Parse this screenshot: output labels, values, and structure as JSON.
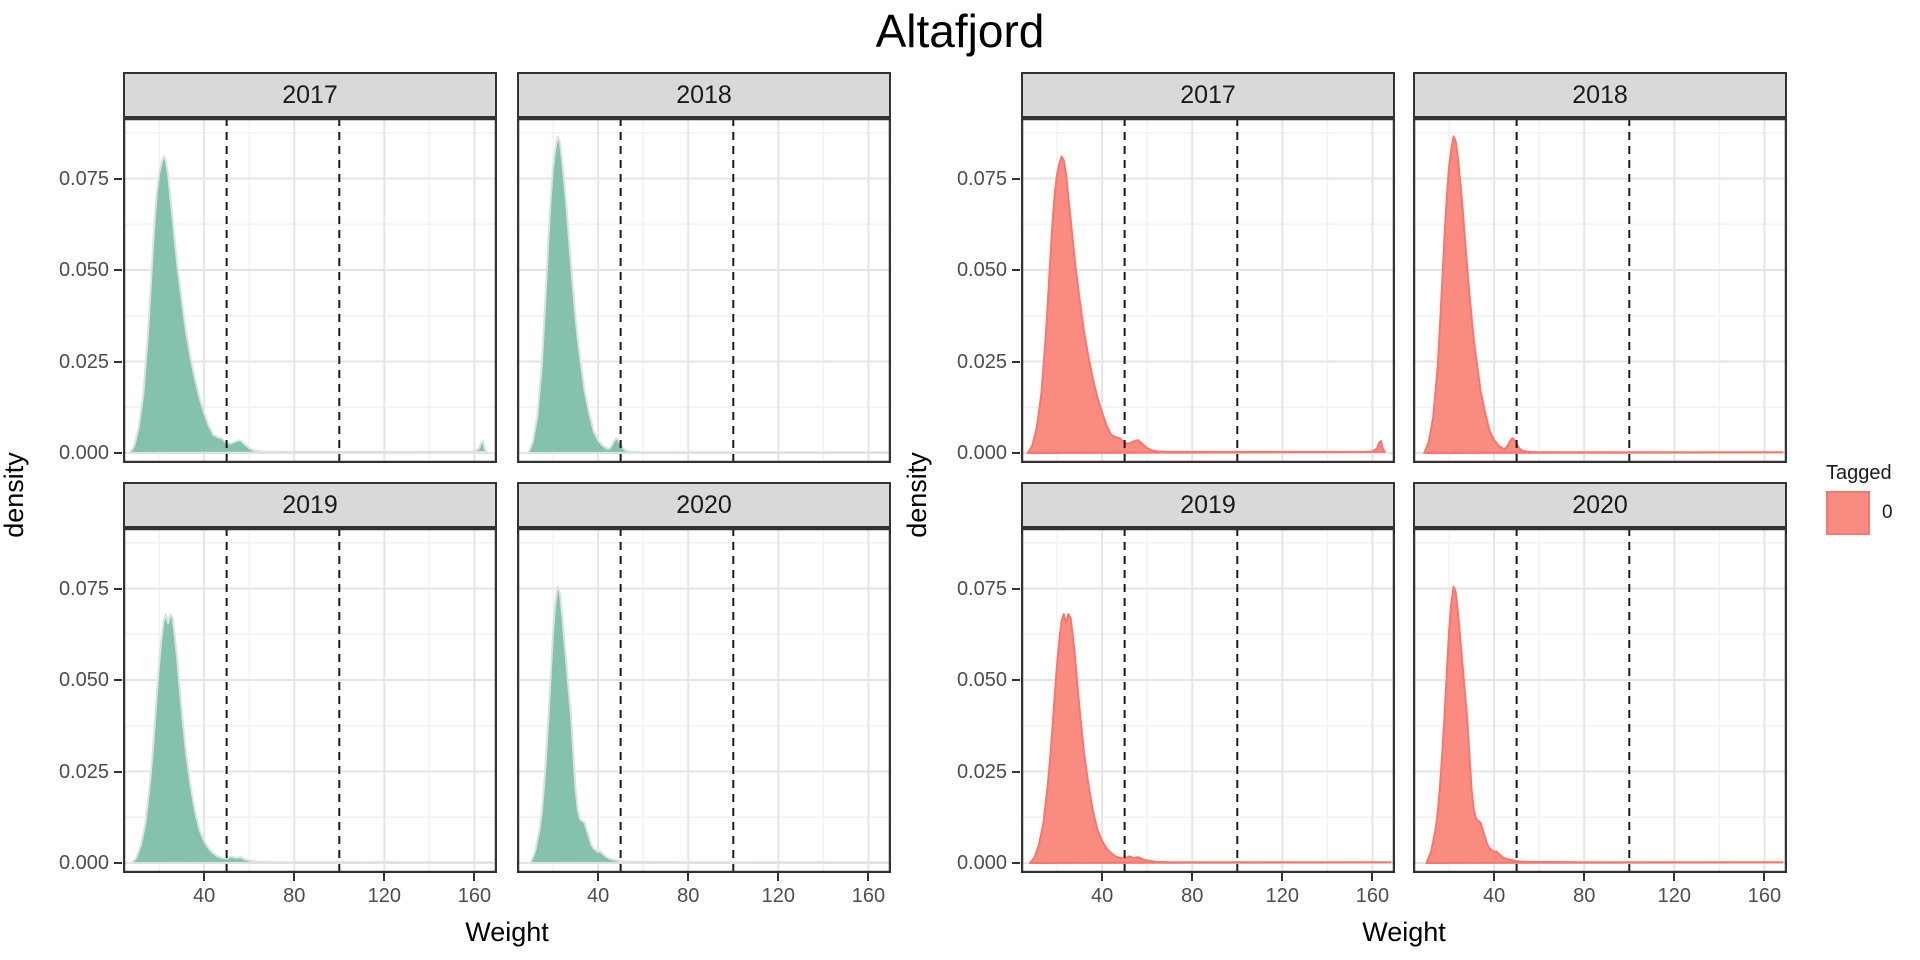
{
  "chart_data": {
    "type": "area",
    "title": "Altafjord",
    "xlabel": "Weight",
    "ylabel": "density",
    "facets": [
      "2017",
      "2018",
      "2019",
      "2020"
    ],
    "x_ticks": [
      40,
      80,
      120,
      160
    ],
    "x_tick_labels": [
      "40",
      "80",
      "120",
      "160"
    ],
    "y_ticks": [
      0,
      0.025,
      0.05,
      0.075
    ],
    "y_tick_labels": [
      "0.000",
      "0.025",
      "0.050",
      "0.075"
    ],
    "xlim": [
      4,
      170
    ],
    "ylim": [
      0,
      0.092
    ],
    "grid": "on",
    "vlines": {
      "values": [
        50,
        100
      ],
      "style": "dashed",
      "color": "#1a1a1a"
    },
    "legend_position": "right",
    "series": [
      {
        "id": "all-fish",
        "fill": "#85C1AF",
        "outline": "#DCE2DF",
        "legend": null
      },
      {
        "id": "tagged-0",
        "fill": "#F98B81",
        "outline": "#F8766D",
        "legend": {
          "title": "Tagged",
          "label": "0"
        }
      }
    ],
    "densities": {
      "2017": {
        "x": [
          7,
          9,
          11,
          13,
          15,
          16,
          17,
          18,
          19,
          20,
          21,
          22,
          23,
          24,
          25,
          26,
          27,
          28,
          29,
          30,
          32,
          34,
          36,
          38,
          40,
          42,
          44,
          46,
          48,
          50,
          52,
          54,
          56,
          58,
          60,
          62,
          65,
          70,
          90,
          120,
          150,
          158,
          160,
          162,
          163,
          163.8,
          164.5,
          165.5
        ],
        "y": [
          0,
          0.002,
          0.007,
          0.016,
          0.032,
          0.042,
          0.053,
          0.063,
          0.071,
          0.076,
          0.079,
          0.081,
          0.08,
          0.076,
          0.07,
          0.064,
          0.058,
          0.052,
          0.047,
          0.042,
          0.033,
          0.026,
          0.02,
          0.015,
          0.011,
          0.0075,
          0.005,
          0.0043,
          0.004,
          0.0027,
          0.0026,
          0.0032,
          0.0035,
          0.0024,
          0.0013,
          0.0007,
          0.0004,
          0.0003,
          0.0003,
          0.0003,
          0.0003,
          0.0003,
          0.0004,
          0.0012,
          0.0028,
          0.0033,
          0.0012,
          0.0003
        ]
      },
      "2018": {
        "x": [
          9,
          11,
          13,
          15,
          16,
          17,
          18,
          19,
          20,
          21,
          22,
          23,
          24,
          25,
          26,
          27,
          28,
          29,
          30,
          31,
          32,
          34,
          36,
          38,
          40,
          42,
          44,
          45,
          46,
          47,
          48,
          49,
          50,
          51,
          52,
          54,
          56,
          60,
          80,
          120,
          168
        ],
        "y": [
          0,
          0.003,
          0.01,
          0.024,
          0.035,
          0.047,
          0.059,
          0.07,
          0.078,
          0.083,
          0.0865,
          0.085,
          0.08,
          0.074,
          0.067,
          0.059,
          0.051,
          0.044,
          0.037,
          0.031,
          0.026,
          0.017,
          0.011,
          0.006,
          0.0035,
          0.002,
          0.0012,
          0.0012,
          0.002,
          0.0032,
          0.004,
          0.0036,
          0.0025,
          0.0014,
          0.0008,
          0.0004,
          0.0003,
          0.0002,
          0.0002,
          0.0002,
          0.0002
        ]
      },
      "2019": {
        "x": [
          8,
          10,
          12,
          14,
          16,
          17,
          18,
          19,
          20,
          21,
          22,
          23,
          24,
          25,
          26,
          27,
          28,
          29,
          30,
          31,
          32,
          34,
          36,
          38,
          40,
          42,
          44,
          46,
          48,
          50,
          52,
          54,
          56,
          58,
          60,
          62,
          64,
          70,
          100,
          140,
          168
        ],
        "y": [
          0,
          0.0015,
          0.005,
          0.011,
          0.022,
          0.029,
          0.037,
          0.046,
          0.054,
          0.061,
          0.066,
          0.068,
          0.0655,
          0.068,
          0.067,
          0.062,
          0.056,
          0.049,
          0.042,
          0.036,
          0.03,
          0.021,
          0.014,
          0.009,
          0.006,
          0.004,
          0.0027,
          0.0018,
          0.0014,
          0.0012,
          0.0018,
          0.0014,
          0.0016,
          0.001,
          0.0007,
          0.0005,
          0.0003,
          0.0002,
          0.0002,
          0.0002,
          0.0002
        ]
      },
      "2020": {
        "x": [
          10,
          12,
          14,
          15,
          16,
          17,
          18,
          19,
          20,
          21,
          22,
          23,
          24,
          25,
          26,
          27,
          28,
          29,
          30,
          31,
          32,
          33,
          34,
          35,
          36,
          37,
          38,
          39,
          40,
          41,
          42,
          44,
          46,
          48,
          50,
          52,
          56,
          80,
          120,
          168
        ],
        "y": [
          0,
          0.003,
          0.009,
          0.014,
          0.021,
          0.03,
          0.04,
          0.052,
          0.063,
          0.071,
          0.0755,
          0.074,
          0.068,
          0.061,
          0.054,
          0.047,
          0.04,
          0.03,
          0.02,
          0.0145,
          0.012,
          0.0115,
          0.011,
          0.009,
          0.007,
          0.005,
          0.004,
          0.0035,
          0.003,
          0.0032,
          0.0025,
          0.0015,
          0.001,
          0.0008,
          0.0005,
          0.0004,
          0.0003,
          0.0002,
          0.0002,
          0.0002
        ]
      }
    }
  }
}
